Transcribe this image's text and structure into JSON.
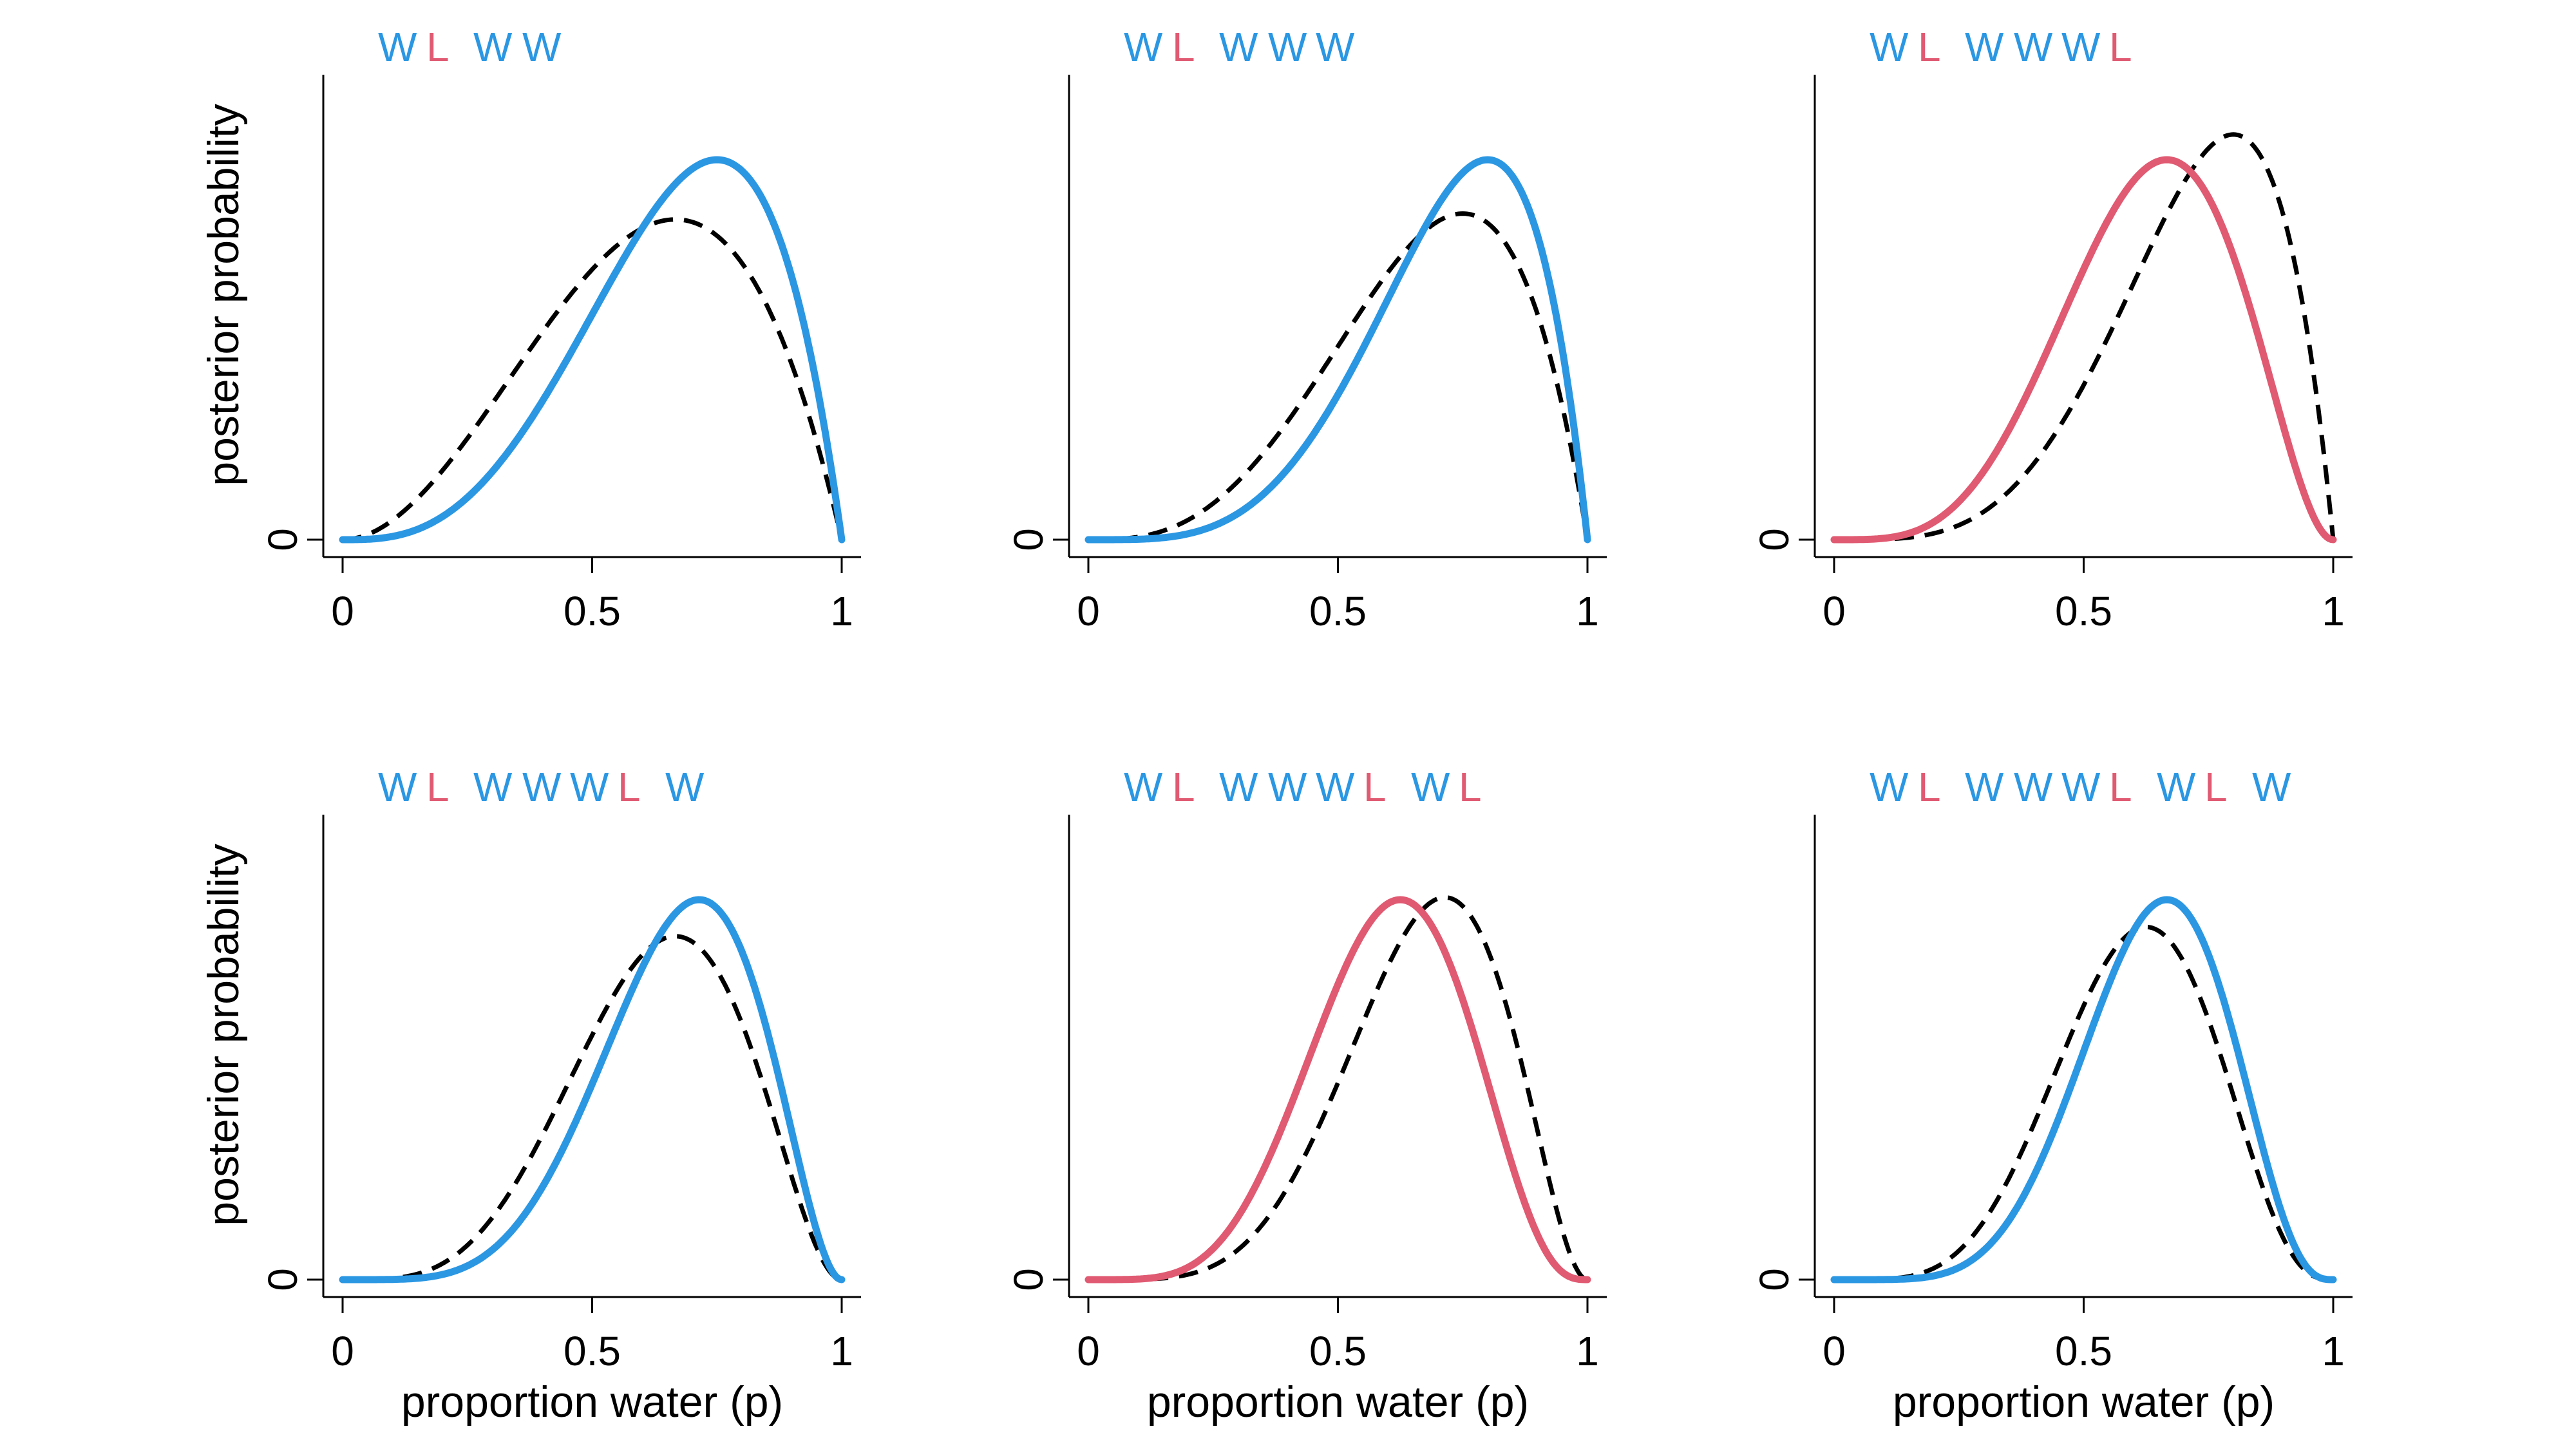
{
  "colors": {
    "water": "#2b97e3",
    "land": "#e05a72",
    "previous": "#000000"
  },
  "labels": {
    "xlabel": "proportion water (p)",
    "ylabel": "posterior probability"
  },
  "chart_data": [
    {
      "type": "line",
      "sequence": [
        "W",
        "L",
        "W",
        "W"
      ],
      "current_color": "water",
      "posterior": {
        "W": 3,
        "L": 1
      },
      "previous": {
        "W": 2,
        "L": 1
      },
      "xlim": [
        0,
        1
      ],
      "x_ticks": [
        "0",
        "0.5",
        "1"
      ],
      "y_ticks": [
        "0"
      ],
      "show_xlabel": false,
      "show_ylabel": true
    },
    {
      "type": "line",
      "sequence": [
        "W",
        "L",
        "W",
        "W",
        "W"
      ],
      "current_color": "water",
      "posterior": {
        "W": 4,
        "L": 1
      },
      "previous": {
        "W": 3,
        "L": 1
      },
      "xlim": [
        0,
        1
      ],
      "x_ticks": [
        "0",
        "0.5",
        "1"
      ],
      "y_ticks": [
        "0"
      ],
      "show_xlabel": false,
      "show_ylabel": false
    },
    {
      "type": "line",
      "sequence": [
        "W",
        "L",
        "W",
        "W",
        "W",
        "L"
      ],
      "current_color": "land",
      "posterior": {
        "W": 4,
        "L": 2
      },
      "previous": {
        "W": 4,
        "L": 1
      },
      "xlim": [
        0,
        1
      ],
      "x_ticks": [
        "0",
        "0.5",
        "1"
      ],
      "y_ticks": [
        "0"
      ],
      "show_xlabel": false,
      "show_ylabel": false
    },
    {
      "type": "line",
      "sequence": [
        "W",
        "L",
        "W",
        "W",
        "W",
        "L",
        "W"
      ],
      "current_color": "water",
      "posterior": {
        "W": 5,
        "L": 2
      },
      "previous": {
        "W": 4,
        "L": 2
      },
      "xlim": [
        0,
        1
      ],
      "x_ticks": [
        "0",
        "0.5",
        "1"
      ],
      "y_ticks": [
        "0"
      ],
      "show_xlabel": true,
      "show_ylabel": true
    },
    {
      "type": "line",
      "sequence": [
        "W",
        "L",
        "W",
        "W",
        "W",
        "L",
        "W",
        "L"
      ],
      "current_color": "land",
      "posterior": {
        "W": 5,
        "L": 3
      },
      "previous": {
        "W": 5,
        "L": 2
      },
      "xlim": [
        0,
        1
      ],
      "x_ticks": [
        "0",
        "0.5",
        "1"
      ],
      "y_ticks": [
        "0"
      ],
      "show_xlabel": true,
      "show_ylabel": false
    },
    {
      "type": "line",
      "sequence": [
        "W",
        "L",
        "W",
        "W",
        "W",
        "L",
        "W",
        "L",
        "W"
      ],
      "current_color": "water",
      "posterior": {
        "W": 6,
        "L": 3
      },
      "previous": {
        "W": 5,
        "L": 3
      },
      "xlim": [
        0,
        1
      ],
      "x_ticks": [
        "0",
        "0.5",
        "1"
      ],
      "y_ticks": [
        "0"
      ],
      "show_xlabel": true,
      "show_ylabel": false
    }
  ]
}
